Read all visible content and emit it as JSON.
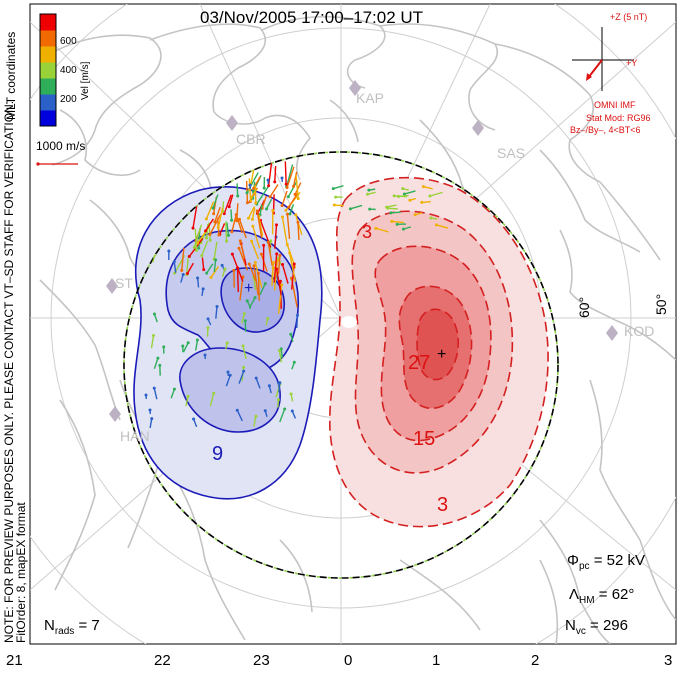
{
  "title": "03/Nov/2005 17:00–17:02 UT",
  "colorbar": {
    "label": "Vel [m/s]",
    "ticks": [
      "600",
      "400",
      "200"
    ],
    "colors": [
      "#0000dd",
      "#2a60c8",
      "#2fae5a",
      "#9ad23a",
      "#f0b000",
      "#f06a00",
      "#ee0000"
    ]
  },
  "coord_label": "MLT coordinates",
  "scale_label": "1000 m/s",
  "notice_line1": "NOTE: FOR PREVIEW PURPOSES ONLY. PLEASE CONTACT VT–SD STAFF FOR VERIFICATION.",
  "notice_line2": "FitOrder: 8, mapEX format",
  "imf": {
    "scale_label": "+Z (5 nT)",
    "y_label": "+Y",
    "source": "OMNI IMF",
    "stat_line1": "Stat Mod: RG96",
    "stat_line2": "Bz–/By–, 4<BT<6"
  },
  "stations": [
    "KAP",
    "CBR",
    "SAS",
    "ST",
    "KOD",
    "HAN"
  ],
  "latitude_labels": [
    "60°",
    "50°"
  ],
  "contour_labels": [
    "3",
    "15",
    "27",
    "9",
    "3"
  ],
  "mlt_labels": [
    "21",
    "22",
    "23",
    "0",
    "1",
    "2",
    "3"
  ],
  "stats": {
    "phi_symbol": "Φ",
    "phi_sub": "pc",
    "phi_value": "= 52 kV",
    "lambda_symbol": "Λ",
    "lambda_sub": "HM",
    "lambda_value": "= 62°",
    "nvc_symbol": "N",
    "nvc_sub": "vc",
    "nvc_value": "= 296",
    "nrads_symbol": "N",
    "nrads_sub": "rads",
    "nrads_value": "= 7"
  }
}
